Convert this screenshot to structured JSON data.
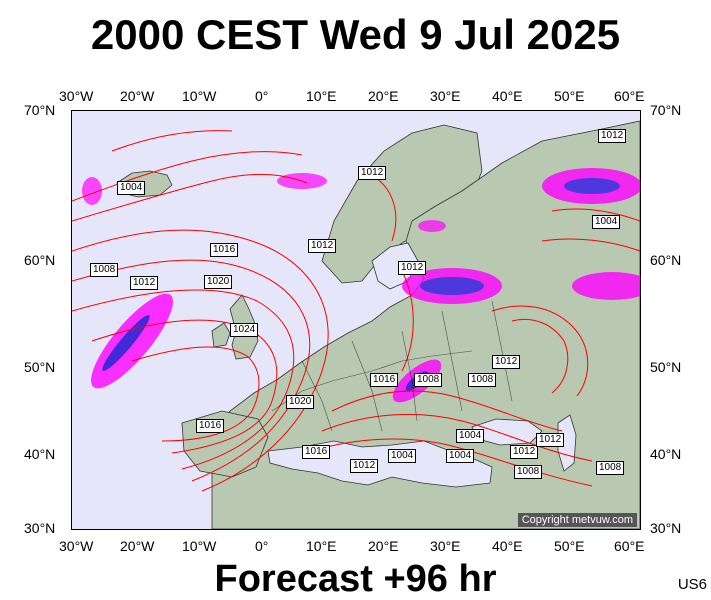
{
  "title": "2000 CEST Wed 9 Jul 2025",
  "footer": "Forecast +96 hr",
  "code": "US6",
  "copyright": "Copyright metvuw.com",
  "axes": {
    "x_ticks": [
      "30°W",
      "20°W",
      "10°W",
      "0°",
      "10°E",
      "20°E",
      "30°E",
      "40°E",
      "50°E",
      "60°E"
    ],
    "y_ticks": [
      "70°N",
      "60°N",
      "50°N",
      "40°N",
      "30°N"
    ]
  },
  "isobar_labels": [
    "1004",
    "1008",
    "1012",
    "1016",
    "1020",
    "1024",
    "1012",
    "1012",
    "1016",
    "1020",
    "1016",
    "1012",
    "1016",
    "1008",
    "1004",
    "1004",
    "1004",
    "1012",
    "1008",
    "1012",
    "1008",
    "1012",
    "1004",
    "1012",
    "1008",
    "1012"
  ]
}
